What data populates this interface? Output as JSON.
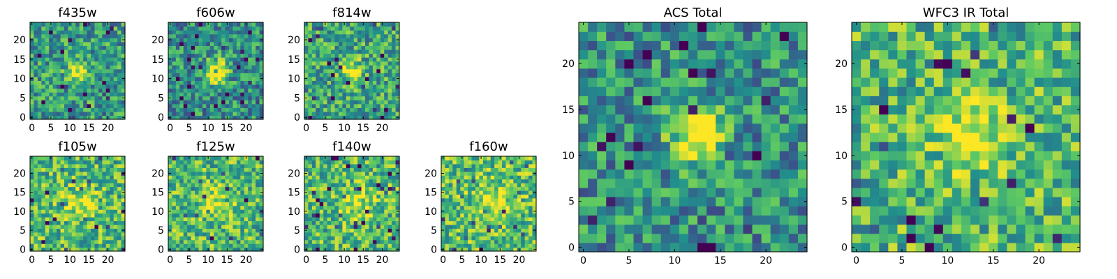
{
  "chart_data": [
    {
      "type": "heatmap",
      "title": "f435w",
      "size": 25,
      "seed": 11,
      "bright": 0.55,
      "blob": {
        "x": 12,
        "y": 12,
        "r": 1.8,
        "amp": 0.45
      },
      "xticks": [
        "0",
        "5",
        "10",
        "15",
        "20"
      ],
      "yticks": [
        "0",
        "5",
        "10",
        "15",
        "20"
      ]
    },
    {
      "type": "heatmap",
      "title": "f606w",
      "size": 25,
      "seed": 23,
      "bright": 0.5,
      "blob": {
        "x": 12,
        "y": 12,
        "r": 2.2,
        "amp": 0.6
      },
      "xticks": [
        "0",
        "5",
        "10",
        "15",
        "20"
      ],
      "yticks": [
        "0",
        "5",
        "10",
        "15",
        "20"
      ]
    },
    {
      "type": "heatmap",
      "title": "f814w",
      "size": 25,
      "seed": 37,
      "bright": 0.6,
      "blob": {
        "x": 12,
        "y": 12,
        "r": 2.0,
        "amp": 0.4
      },
      "xticks": [
        "0",
        "5",
        "10",
        "15",
        "20"
      ],
      "yticks": [
        "0",
        "5",
        "10",
        "15",
        "20"
      ]
    },
    {
      "type": "heatmap",
      "title": "f105w",
      "size": 25,
      "seed": 41,
      "bright": 0.68,
      "blob": {
        "x": 13,
        "y": 12,
        "r": 3.0,
        "amp": 0.25
      },
      "xticks": [
        "0",
        "5",
        "10",
        "15",
        "20"
      ],
      "yticks": [
        "0",
        "5",
        "10",
        "15",
        "20"
      ]
    },
    {
      "type": "heatmap",
      "title": "f125w",
      "size": 25,
      "seed": 53,
      "bright": 0.68,
      "blob": {
        "x": 13,
        "y": 12,
        "r": 3.0,
        "amp": 0.25
      },
      "xticks": [
        "0",
        "5",
        "10",
        "15",
        "20"
      ],
      "yticks": [
        "0",
        "5",
        "10",
        "15",
        "20"
      ]
    },
    {
      "type": "heatmap",
      "title": "f140w",
      "size": 25,
      "seed": 67,
      "bright": 0.68,
      "blob": {
        "x": 13,
        "y": 12,
        "r": 3.0,
        "amp": 0.25
      },
      "xticks": [
        "0",
        "5",
        "10",
        "15",
        "20"
      ],
      "yticks": [
        "0",
        "5",
        "10",
        "15",
        "20"
      ]
    },
    {
      "type": "heatmap",
      "title": "f160w",
      "size": 25,
      "seed": 79,
      "bright": 0.7,
      "blob": {
        "x": 13,
        "y": 13,
        "r": 3.0,
        "amp": 0.25
      },
      "xticks": [
        "0",
        "5",
        "10",
        "15",
        "20"
      ],
      "yticks": [
        "0",
        "5",
        "10",
        "15",
        "20"
      ]
    },
    {
      "type": "heatmap",
      "title": "ACS Total",
      "size": 25,
      "seed": 97,
      "bright": 0.5,
      "blob": {
        "x": 12.5,
        "y": 12,
        "r": 2.0,
        "amp": 0.65
      },
      "xticks": [
        "0",
        "5",
        "10",
        "15",
        "20"
      ],
      "yticks": [
        "0",
        "5",
        "10",
        "15",
        "20"
      ]
    },
    {
      "type": "heatmap",
      "title": "WFC3 IR Total",
      "size": 25,
      "seed": 113,
      "bright": 0.66,
      "blob": {
        "x": 12.5,
        "y": 12,
        "r": 2.5,
        "amp": 0.4
      },
      "xticks": [
        "0",
        "5",
        "10",
        "15",
        "20"
      ],
      "yticks": [
        "0",
        "5",
        "10",
        "15",
        "20"
      ]
    }
  ],
  "colormap": [
    "#440154",
    "#3b528b",
    "#21908c",
    "#5dc963",
    "#fde725"
  ]
}
